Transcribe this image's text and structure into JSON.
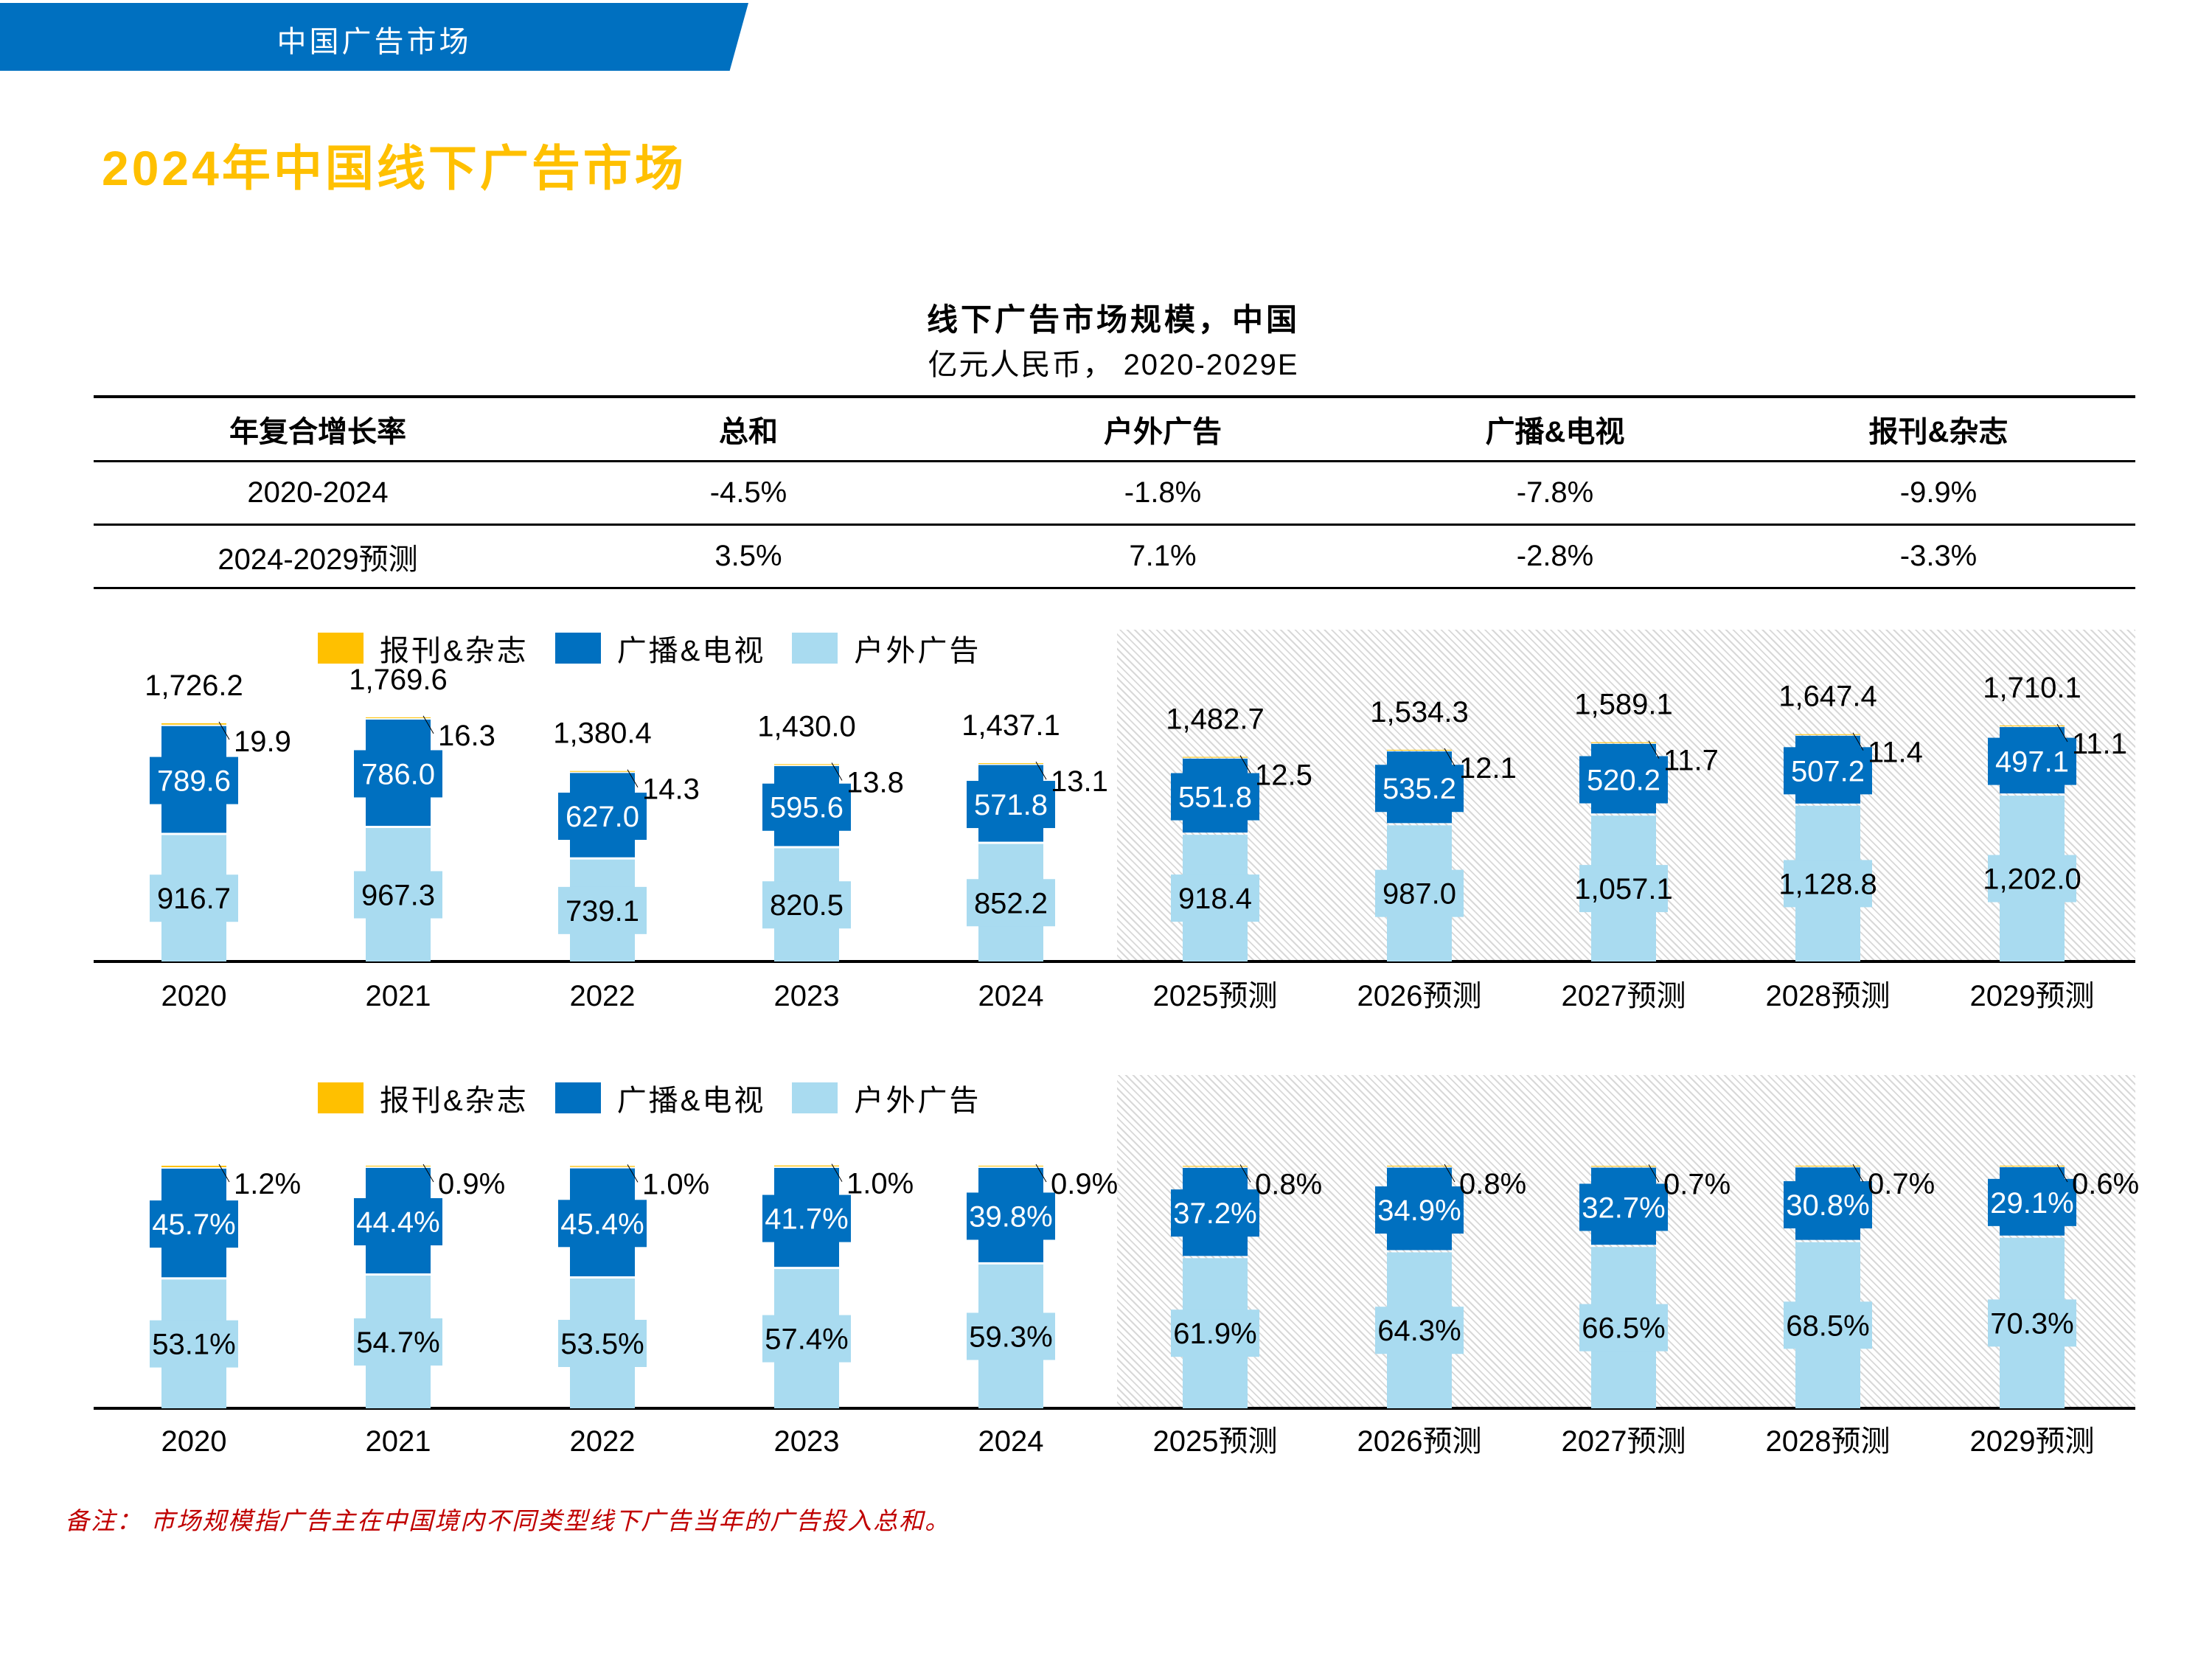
{
  "banner": {
    "label": "中国广告市场"
  },
  "page_title": "2024年中国线下广告市场",
  "chart_title": "线下广告市场规模，中国",
  "chart_subtitle": "亿元人民币， 2020-2029E",
  "cagr_table": {
    "headers": [
      "年复合增长率",
      "总和",
      "户外广告",
      "广播&电视",
      "报刊&杂志"
    ],
    "rows": [
      [
        "2020-2024",
        "-4.5%",
        "-1.8%",
        "-7.8%",
        "-9.9%"
      ],
      [
        "2024-2029预测",
        "3.5%",
        "7.1%",
        "-2.8%",
        "-3.3%"
      ]
    ]
  },
  "colors": {
    "press": "#FFC000",
    "broadcast": "#0070C0",
    "outdoor": "#A9DBF0",
    "forecast_hatch": "#D8D8D8",
    "note": "#C00000",
    "title": "#FFC000"
  },
  "legend": [
    "报刊&杂志",
    "广播&电视",
    "户外广告"
  ],
  "chart_data": [
    {
      "type": "bar",
      "stacked": true,
      "unit": "亿元人民币",
      "forecast_shaded_from": "2025预测",
      "categories": [
        "2020",
        "2021",
        "2022",
        "2023",
        "2024",
        "2025预测",
        "2026预测",
        "2027预测",
        "2028预测",
        "2029预测"
      ],
      "series": [
        {
          "name": "户外广告",
          "values": [
            916.7,
            967.3,
            739.1,
            820.5,
            852.2,
            918.4,
            987.0,
            1057.1,
            1128.8,
            1202.0
          ]
        },
        {
          "name": "广播&电视",
          "values": [
            789.6,
            786.0,
            627.0,
            595.6,
            571.8,
            551.8,
            535.2,
            520.2,
            507.2,
            497.1
          ]
        },
        {
          "name": "报刊&杂志",
          "values": [
            19.9,
            16.3,
            14.3,
            13.8,
            13.1,
            12.5,
            12.1,
            11.7,
            11.4,
            11.1
          ]
        }
      ],
      "totals": [
        1726.2,
        1769.6,
        1380.4,
        1430.0,
        1437.1,
        1482.7,
        1534.3,
        1589.1,
        1647.4,
        1710.1
      ],
      "labels": {
        "outdoor": [
          "916.7",
          "967.3",
          "739.1",
          "820.5",
          "852.2",
          "918.4",
          "987.0",
          "1,057.1",
          "1,128.8",
          "1,202.0"
        ],
        "broadcast": [
          "789.6",
          "786.0",
          "627.0",
          "595.6",
          "571.8",
          "551.8",
          "535.2",
          "520.2",
          "507.2",
          "497.1"
        ],
        "press": [
          "19.9",
          "16.3",
          "14.3",
          "13.8",
          "13.1",
          "12.5",
          "12.1",
          "11.7",
          "11.4",
          "11.1"
        ],
        "totals": [
          "1,726.2",
          "1,769.6",
          "1,380.4",
          "1,430.0",
          "1,437.1",
          "1,482.7",
          "1,534.3",
          "1,589.1",
          "1,647.4",
          "1,710.1"
        ]
      }
    },
    {
      "type": "bar",
      "stacked": true,
      "percent": true,
      "forecast_shaded_from": "2025预测",
      "categories": [
        "2020",
        "2021",
        "2022",
        "2023",
        "2024",
        "2025预测",
        "2026预测",
        "2027预测",
        "2028预测",
        "2029预测"
      ],
      "series": [
        {
          "name": "户外广告",
          "values": [
            53.1,
            54.7,
            53.5,
            57.4,
            59.3,
            61.9,
            64.3,
            66.5,
            68.5,
            70.3
          ]
        },
        {
          "name": "广播&电视",
          "values": [
            45.7,
            44.4,
            45.4,
            41.7,
            39.8,
            37.2,
            34.9,
            32.7,
            30.8,
            29.1
          ]
        },
        {
          "name": "报刊&杂志",
          "values": [
            1.2,
            0.9,
            1.0,
            1.0,
            0.9,
            0.8,
            0.8,
            0.7,
            0.7,
            0.6
          ]
        }
      ],
      "labels": {
        "outdoor": [
          "53.1%",
          "54.7%",
          "53.5%",
          "57.4%",
          "59.3%",
          "61.9%",
          "64.3%",
          "66.5%",
          "68.5%",
          "70.3%"
        ],
        "broadcast": [
          "45.7%",
          "44.4%",
          "45.4%",
          "41.7%",
          "39.8%",
          "37.2%",
          "34.9%",
          "32.7%",
          "30.8%",
          "29.1%"
        ],
        "press": [
          "1.2%",
          "0.9%",
          "1.0%",
          "1.0%",
          "0.9%",
          "0.8%",
          "0.8%",
          "0.7%",
          "0.7%",
          "0.6%"
        ]
      }
    }
  ],
  "note": "备注： 市场规模指广告主在中国境内不同类型线下广告当年的广告投入总和。"
}
